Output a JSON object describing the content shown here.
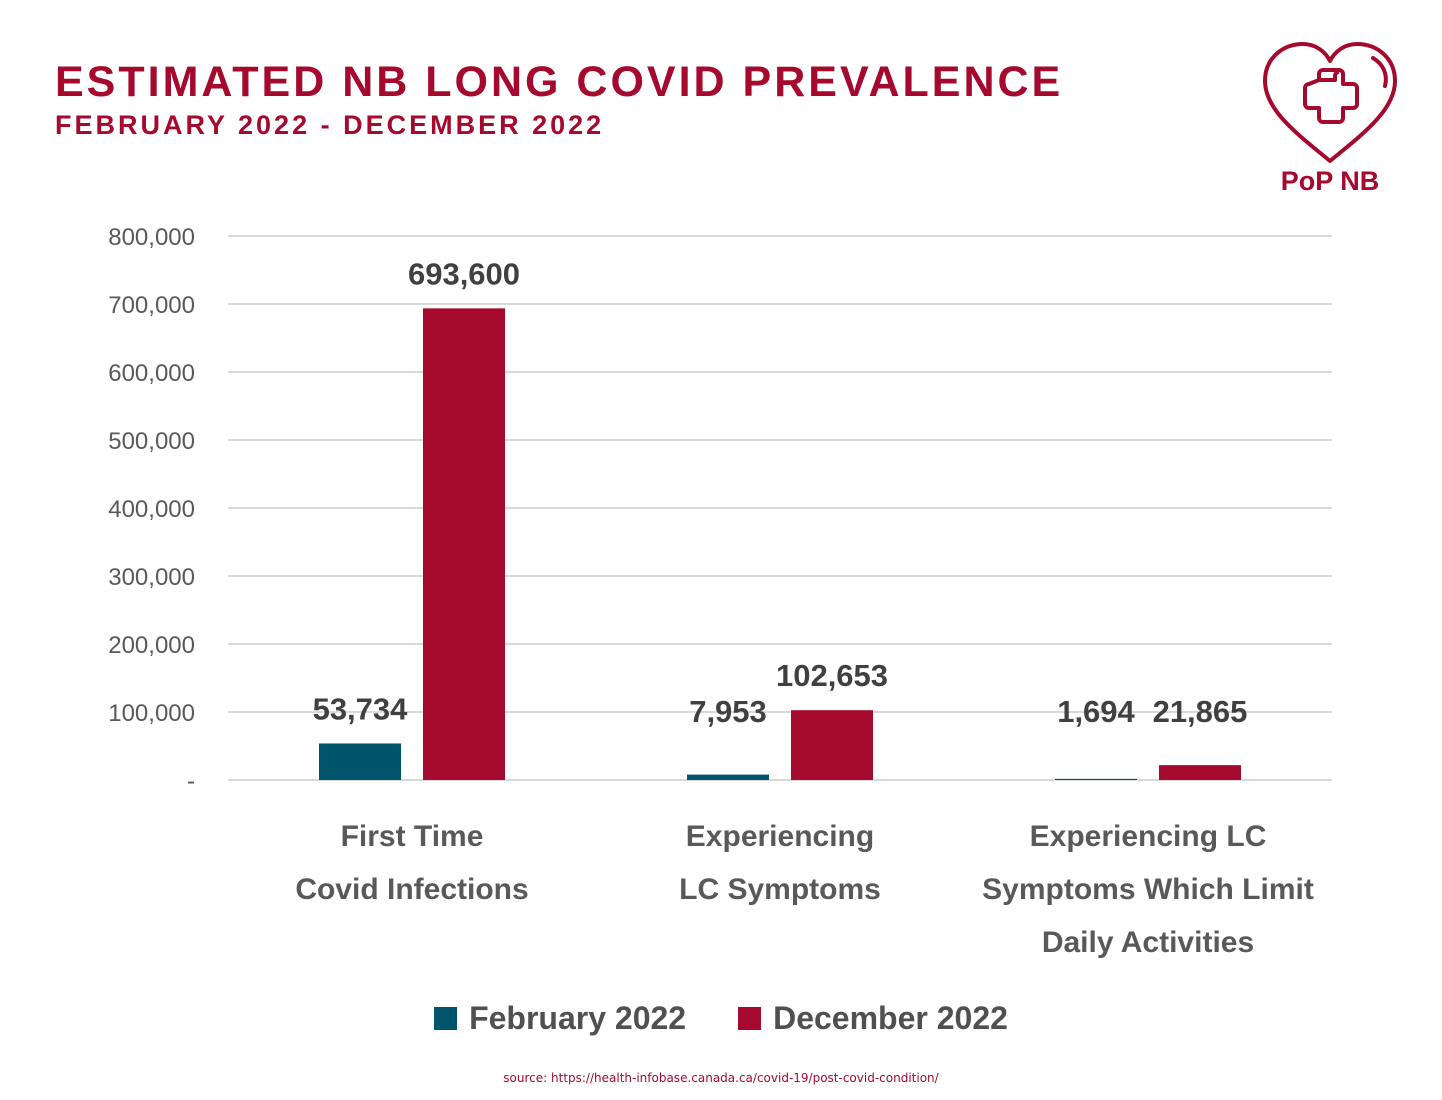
{
  "header": {
    "title": "ESTIMATED NB LONG COVID PREVALENCE",
    "subtitle": "FEBRUARY 2022 - DECEMBER 2022"
  },
  "logo": {
    "text": "PoP NB",
    "icon": "heart-with-medical-cross-icon",
    "color": "#a50a2e"
  },
  "source": "source: https://health-infobase.canada.ca/covid-19/post-covid-condition/",
  "chart_data": {
    "type": "bar",
    "categories": [
      [
        "First Time",
        "Covid Infections"
      ],
      [
        "Experiencing",
        "LC Symptoms"
      ],
      [
        "Experiencing LC",
        "Symptoms Which Limit",
        "Daily Activities"
      ]
    ],
    "series": [
      {
        "name": "February 2022",
        "color": "#00546b",
        "values": [
          53734,
          7953,
          1694
        ],
        "labels": [
          "53,734",
          "7,953",
          "1,694"
        ]
      },
      {
        "name": "December 2022",
        "color": "#a50a2e",
        "values": [
          693600,
          102653,
          21865
        ],
        "labels": [
          "693,600",
          "102,653",
          "21,865"
        ]
      }
    ],
    "yticks": [
      "-",
      "100,000",
      "200,000",
      "300,000",
      "400,000",
      "500,000",
      "600,000",
      "700,000",
      "800,000"
    ],
    "ylim": [
      0,
      800000
    ],
    "grid": true,
    "legend_position": "bottom-center"
  }
}
